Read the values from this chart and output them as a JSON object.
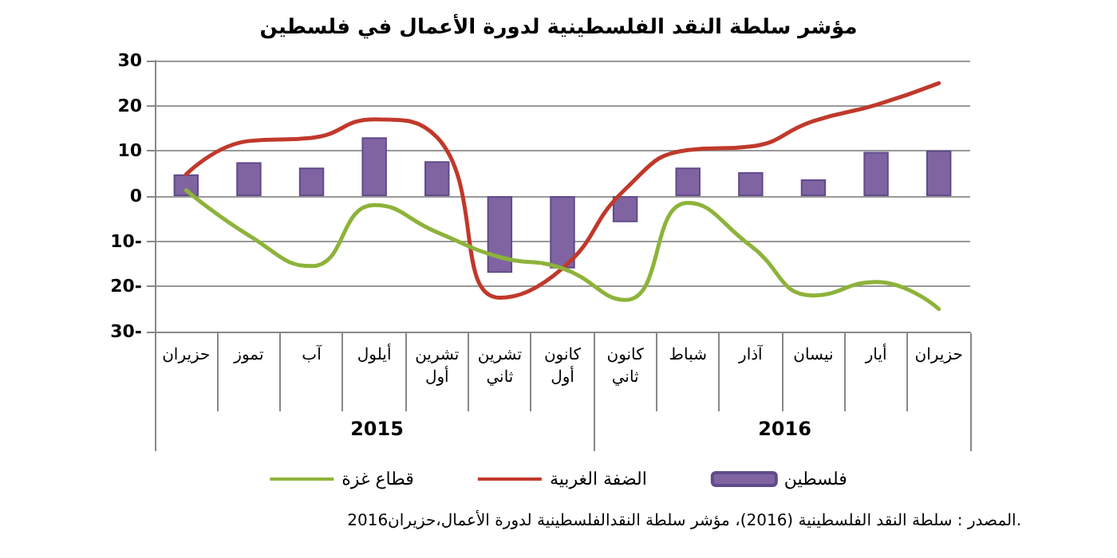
{
  "chart_data": {
    "type": "bar",
    "title": "مؤشر سلطة النقد الفلسطينية لدورة الأعمال في فلسطين",
    "categories": [
      "حزيران",
      "تموز",
      "آب",
      "أيلول",
      "تشرين أول",
      "تشرين ثاني",
      "كانون أول",
      "كانون ثاني",
      "شباط",
      "آذار",
      "نيسان",
      "أيار",
      "حزيران"
    ],
    "series": [
      {
        "name": "فلسطين",
        "type": "bar",
        "color": "#8064a2",
        "values": [
          4.8,
          7.5,
          6.3,
          13,
          7.7,
          -17,
          -16,
          -5.8,
          6.3,
          5.3,
          3.7,
          9.8,
          10.1
        ]
      },
      {
        "name": "الضفة الغربية",
        "type": "line",
        "color": "#c0392b",
        "values": [
          4.8,
          12.2,
          12.9,
          17,
          13,
          -22.5,
          -16,
          1.5,
          10.2,
          11,
          16.6,
          20.2,
          25
        ]
      },
      {
        "name": "قطاع غزة",
        "type": "line",
        "color": "#8db33a",
        "values": [
          1.3,
          -8.7,
          -15.5,
          -2,
          -8,
          -13.5,
          -16,
          -23,
          -1.5,
          -11,
          -22,
          -19,
          -25
        ]
      }
    ],
    "ylim": [
      -30,
      30
    ],
    "yticks": [
      {
        "value": -30,
        "label": "30-"
      },
      {
        "value": -20,
        "label": "20-"
      },
      {
        "value": -10,
        "label": "10-"
      },
      0,
      10,
      20,
      30
    ],
    "grid": "y",
    "legend": "bottom",
    "marker": "none",
    "line_style": "solid",
    "annotations": [
      "2015",
      "2016",
      "المصدر : سلطة النقد الفلسطينية (2016)، مؤشر سلطة النقدالفلسطينية لدورة الأعمال،حزيران2016."
    ]
  }
}
